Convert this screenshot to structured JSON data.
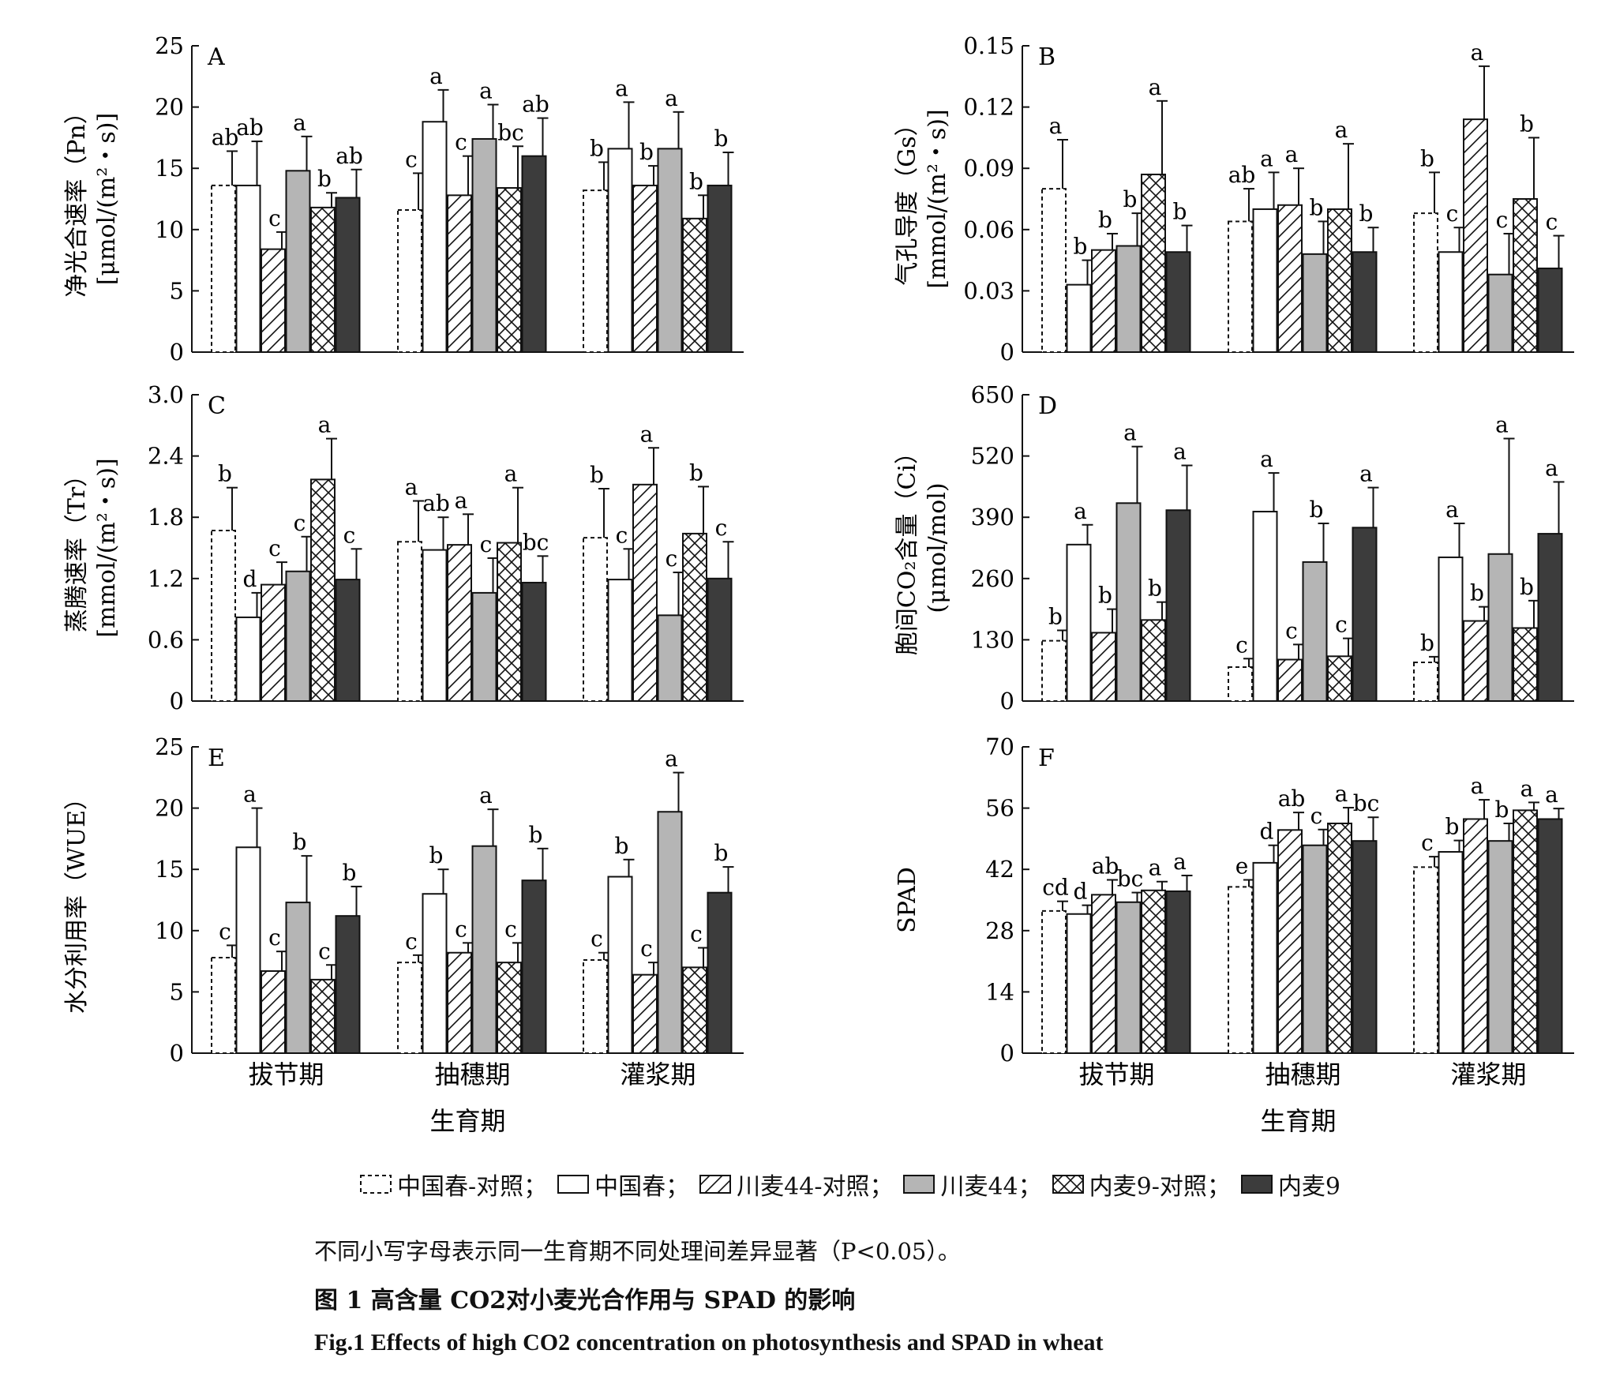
{
  "figure": {
    "note": "不同小写字母表示同一生育期不同处理间差异显著（P<0.05）。",
    "caption_cn": "图 1  高含量 CO2对小麦光合作用与 SPAD 的影响",
    "caption_en": "Fig.1  Effects of high CO2 concentration on photosynthesis and SPAD in wheat",
    "xlabel": "生育期"
  },
  "legend": [
    {
      "name": "中国春-对照",
      "style": "dashed-white"
    },
    {
      "name": "中国春",
      "style": "white"
    },
    {
      "name": "川麦44-对照",
      "style": "hatch"
    },
    {
      "name": "川麦44",
      "style": "gray",
      "color": "#b5b5b5"
    },
    {
      "name": "内麦9-对照",
      "style": "crosshatch"
    },
    {
      "name": "内麦9",
      "style": "dark",
      "color": "#3c3c3c"
    }
  ],
  "chart_data": [
    {
      "type": "bar",
      "panel": "A",
      "ylabel_line1": "净光合速率（Pn）",
      "ylabel_line2": "[μmol/(m²・s)]",
      "categories": [
        "拔节期",
        "抽穗期",
        "灌浆期"
      ],
      "ylim": [
        0,
        25
      ],
      "yticks": [
        "0",
        "5",
        "10",
        "15",
        "20",
        "25"
      ],
      "series": [
        {
          "name": "中国春-对照",
          "values": [
            13.6,
            11.6,
            13.2
          ],
          "errors": [
            2.8,
            3.0,
            2.3
          ],
          "letters": [
            "ab",
            "c",
            "b"
          ]
        },
        {
          "name": "中国春",
          "values": [
            13.6,
            18.8,
            16.6
          ],
          "errors": [
            3.6,
            2.6,
            3.8
          ],
          "letters": [
            "ab",
            "a",
            "a"
          ]
        },
        {
          "name": "川麦44-对照",
          "values": [
            8.4,
            12.8,
            13.6
          ],
          "errors": [
            1.4,
            3.2,
            1.6
          ],
          "letters": [
            "c",
            "c",
            "b"
          ]
        },
        {
          "name": "川麦44",
          "values": [
            14.8,
            17.4,
            16.6
          ],
          "errors": [
            2.8,
            2.8,
            3.0
          ],
          "letters": [
            "a",
            "a",
            "a"
          ]
        },
        {
          "name": "内麦9-对照",
          "values": [
            11.8,
            13.4,
            10.9
          ],
          "errors": [
            1.2,
            3.4,
            1.9
          ],
          "letters": [
            "b",
            "bc",
            "b"
          ]
        },
        {
          "name": "内麦9",
          "values": [
            12.6,
            16.0,
            13.6
          ],
          "errors": [
            2.3,
            3.1,
            2.7
          ],
          "letters": [
            "ab",
            "ab",
            "b"
          ]
        }
      ]
    },
    {
      "type": "bar",
      "panel": "B",
      "ylabel_line1": "气孔导度（Gs）",
      "ylabel_line2": "[mmol/(m²・s)]",
      "categories": [
        "拔节期",
        "抽穗期",
        "灌浆期"
      ],
      "ylim": [
        0,
        0.15
      ],
      "yticks": [
        "0",
        "0.03",
        "0.06",
        "0.09",
        "0.12",
        "0.15"
      ],
      "series": [
        {
          "name": "中国春-对照",
          "values": [
            0.08,
            0.064,
            0.068
          ],
          "errors": [
            0.024,
            0.016,
            0.02
          ],
          "letters": [
            "a",
            "ab",
            "b"
          ]
        },
        {
          "name": "中国春",
          "values": [
            0.033,
            0.07,
            0.049
          ],
          "errors": [
            0.012,
            0.018,
            0.012
          ],
          "letters": [
            "b",
            "a",
            "c"
          ]
        },
        {
          "name": "川麦44-对照",
          "values": [
            0.05,
            0.072,
            0.114
          ],
          "errors": [
            0.008,
            0.018,
            0.026
          ],
          "letters": [
            "b",
            "a",
            "a"
          ]
        },
        {
          "name": "川麦44",
          "values": [
            0.052,
            0.048,
            0.038
          ],
          "errors": [
            0.016,
            0.016,
            0.02
          ],
          "letters": [
            "b",
            "b",
            "c"
          ]
        },
        {
          "name": "内麦9-对照",
          "values": [
            0.087,
            0.07,
            0.075
          ],
          "errors": [
            0.036,
            0.032,
            0.03
          ],
          "letters": [
            "a",
            "a",
            "b"
          ]
        },
        {
          "name": "内麦9",
          "values": [
            0.049,
            0.049,
            0.041
          ],
          "errors": [
            0.013,
            0.012,
            0.016
          ],
          "letters": [
            "b",
            "b",
            "c"
          ]
        }
      ]
    },
    {
      "type": "bar",
      "panel": "C",
      "ylabel_line1": "蒸腾速率（Tr）",
      "ylabel_line2": "[mmol/(m²・s)]",
      "categories": [
        "拔节期",
        "抽穗期",
        "灌浆期"
      ],
      "ylim": [
        0,
        3.0
      ],
      "yticks": [
        "0",
        "0.6",
        "1.2",
        "1.8",
        "2.4",
        "3.0"
      ],
      "series": [
        {
          "name": "中国春-对照",
          "values": [
            1.67,
            1.56,
            1.6
          ],
          "errors": [
            0.42,
            0.4,
            0.48
          ],
          "letters": [
            "b",
            "a",
            "b"
          ]
        },
        {
          "name": "中国春",
          "values": [
            0.82,
            1.48,
            1.19
          ],
          "errors": [
            0.24,
            0.32,
            0.3
          ],
          "letters": [
            "d",
            "ab",
            "c"
          ]
        },
        {
          "name": "川麦44-对照",
          "values": [
            1.14,
            1.53,
            2.12
          ],
          "errors": [
            0.22,
            0.3,
            0.36
          ],
          "letters": [
            "c",
            "a",
            "a"
          ]
        },
        {
          "name": "川麦44",
          "values": [
            1.27,
            1.06,
            0.84
          ],
          "errors": [
            0.34,
            0.34,
            0.42
          ],
          "letters": [
            "c",
            "c",
            "c"
          ]
        },
        {
          "name": "内麦9-对照",
          "values": [
            2.17,
            1.55,
            1.64
          ],
          "errors": [
            0.4,
            0.54,
            0.46
          ],
          "letters": [
            "a",
            "a",
            "b"
          ]
        },
        {
          "name": "内麦9",
          "values": [
            1.19,
            1.16,
            1.2
          ],
          "errors": [
            0.3,
            0.26,
            0.36
          ],
          "letters": [
            "c",
            "bc",
            "c"
          ]
        }
      ]
    },
    {
      "type": "bar",
      "panel": "D",
      "ylabel_line1": "胞间CO₂含量（Ci）",
      "ylabel_line2": "(μmol/mol)",
      "categories": [
        "拔节期",
        "抽穗期",
        "灌浆期"
      ],
      "ylim": [
        0,
        650
      ],
      "yticks": [
        "0",
        "130",
        "260",
        "390",
        "520",
        "650"
      ],
      "series": [
        {
          "name": "中国春-对照",
          "values": [
            128,
            72,
            82
          ],
          "errors": [
            22,
            18,
            12
          ],
          "letters": [
            "b",
            "c",
            "b"
          ]
        },
        {
          "name": "中国春",
          "values": [
            332,
            402,
            305
          ],
          "errors": [
            42,
            82,
            72
          ],
          "letters": [
            "a",
            "a",
            "a"
          ]
        },
        {
          "name": "川麦44-对照",
          "values": [
            145,
            88,
            170
          ],
          "errors": [
            50,
            32,
            30
          ],
          "letters": [
            "b",
            "c",
            "b"
          ]
        },
        {
          "name": "川麦44",
          "values": [
            420,
            295,
            312
          ],
          "errors": [
            120,
            82,
            245
          ],
          "letters": [
            "a",
            "b",
            "a"
          ]
        },
        {
          "name": "内麦9-对照",
          "values": [
            172,
            95,
            155
          ],
          "errors": [
            38,
            38,
            58
          ],
          "letters": [
            "b",
            "c",
            "b"
          ]
        },
        {
          "name": "内麦9",
          "values": [
            405,
            368,
            355
          ],
          "errors": [
            95,
            85,
            110
          ],
          "letters": [
            "a",
            "a",
            "a"
          ]
        }
      ]
    },
    {
      "type": "bar",
      "panel": "E",
      "ylabel_line1": "水分利用率（WUE）",
      "ylabel_line2": "",
      "categories": [
        "拔节期",
        "抽穗期",
        "灌浆期"
      ],
      "ylim": [
        0,
        25
      ],
      "yticks": [
        "0",
        "5",
        "10",
        "15",
        "20",
        "25"
      ],
      "series": [
        {
          "name": "中国春-对照",
          "values": [
            7.8,
            7.4,
            7.6
          ],
          "errors": [
            1.0,
            0.6,
            0.6
          ],
          "letters": [
            "c",
            "c",
            "c"
          ]
        },
        {
          "name": "中国春",
          "values": [
            16.8,
            13.0,
            14.4
          ],
          "errors": [
            3.2,
            2.0,
            1.4
          ],
          "letters": [
            "a",
            "b",
            "b"
          ]
        },
        {
          "name": "川麦44-对照",
          "values": [
            6.7,
            8.2,
            6.4
          ],
          "errors": [
            1.6,
            0.8,
            1.0
          ],
          "letters": [
            "c",
            "c",
            "c"
          ]
        },
        {
          "name": "川麦44",
          "values": [
            12.3,
            16.9,
            19.7
          ],
          "errors": [
            3.8,
            3.0,
            3.2
          ],
          "letters": [
            "b",
            "a",
            "a"
          ]
        },
        {
          "name": "内麦9-对照",
          "values": [
            6.0,
            7.4,
            7.0
          ],
          "errors": [
            1.2,
            1.6,
            1.6
          ],
          "letters": [
            "c",
            "c",
            "c"
          ]
        },
        {
          "name": "内麦9",
          "values": [
            11.2,
            14.1,
            13.1
          ],
          "errors": [
            2.4,
            2.6,
            2.1
          ],
          "letters": [
            "b",
            "b",
            "b"
          ]
        }
      ]
    },
    {
      "type": "bar",
      "panel": "F",
      "ylabel_line1": "SPAD",
      "ylabel_line2": "",
      "categories": [
        "拔节期",
        "抽穗期",
        "灌浆期"
      ],
      "ylim": [
        0,
        70
      ],
      "yticks": [
        "0",
        "14",
        "28",
        "42",
        "56",
        "70"
      ],
      "series": [
        {
          "name": "中国春-对照",
          "values": [
            32.5,
            38.0,
            42.5
          ],
          "errors": [
            2.2,
            1.6,
            2.4
          ],
          "letters": [
            "cd",
            "e",
            "c"
          ]
        },
        {
          "name": "中国春",
          "values": [
            31.8,
            43.5,
            46.0
          ],
          "errors": [
            2.0,
            4.0,
            2.6
          ],
          "letters": [
            "d",
            "d",
            "b"
          ]
        },
        {
          "name": "川麦44-对照",
          "values": [
            36.2,
            51.0,
            53.5
          ],
          "errors": [
            3.4,
            4.0,
            4.4
          ],
          "letters": [
            "ab",
            "ab",
            "a"
          ]
        },
        {
          "name": "川麦44",
          "values": [
            34.5,
            47.5,
            48.5
          ],
          "errors": [
            2.2,
            3.6,
            4.0
          ],
          "letters": [
            "bc",
            "c",
            "b"
          ]
        },
        {
          "name": "内麦9-对照",
          "values": [
            37.2,
            52.5,
            55.5
          ],
          "errors": [
            2.0,
            3.6,
            1.8
          ],
          "letters": [
            "a",
            "a",
            "a"
          ]
        },
        {
          "name": "内麦9",
          "values": [
            37.0,
            48.5,
            53.5
          ],
          "errors": [
            3.6,
            5.4,
            2.4
          ],
          "letters": [
            "a",
            "bc",
            "a"
          ]
        }
      ]
    }
  ]
}
